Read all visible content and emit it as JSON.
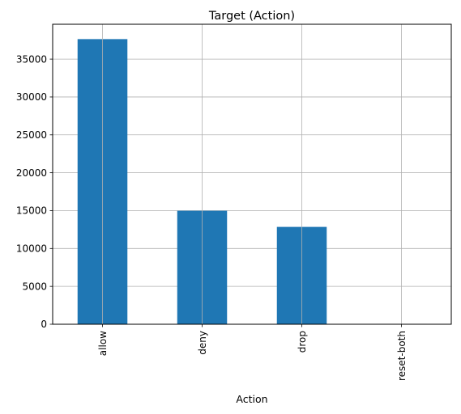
{
  "chart_data": {
    "type": "bar",
    "title": "Target (Action)",
    "xlabel": "Action",
    "ylabel": "",
    "categories": [
      "allow",
      "deny",
      "drop",
      "reset-both"
    ],
    "values": [
      37640,
      14987,
      12851,
      54
    ],
    "ylim": [
      0,
      39600
    ],
    "yticks": [
      0,
      5000,
      10000,
      15000,
      20000,
      25000,
      30000,
      35000
    ],
    "ytick_labels": [
      "0",
      "5000",
      "10000",
      "15000",
      "20000",
      "25000",
      "30000",
      "35000"
    ],
    "grid": true,
    "legend": "none",
    "bar_color": "#1f77b4",
    "grid_color": "#b0b0b0"
  }
}
